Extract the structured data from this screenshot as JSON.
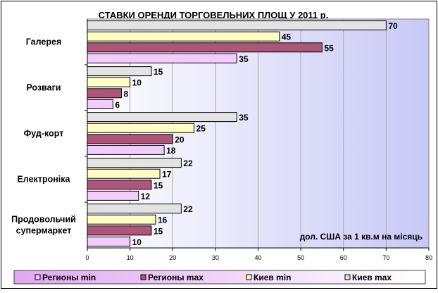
{
  "chart_data": {
    "type": "bar",
    "orientation": "horizontal",
    "title": "СТАВКИ ОРЕНДИ ТОРГОВЕЛЬНИХ ПЛОЩ У 2011 р.",
    "annotation": "дол. США за 1 кв.м на місяць",
    "categories": [
      [
        "Галерея"
      ],
      [
        "Розваги"
      ],
      [
        "Фуд-корт"
      ],
      [
        "Електроніка"
      ],
      [
        "Продовольчий",
        "супермаркет"
      ]
    ],
    "series": [
      {
        "name": "Регионы min",
        "values": [
          35,
          6,
          18,
          12,
          10
        ],
        "color": "#f2ccff"
      },
      {
        "name": "Регионы max",
        "values": [
          55,
          8,
          20,
          15,
          15
        ],
        "color": "#b0557a"
      },
      {
        "name": "Киев min",
        "values": [
          45,
          10,
          25,
          17,
          16
        ],
        "color": "#ffffc4"
      },
      {
        "name": "Киев max",
        "values": [
          70,
          15,
          35,
          22,
          22
        ],
        "color": "#e3e3e3"
      }
    ],
    "xlim": [
      0,
      80
    ],
    "xticks": [
      0,
      10,
      20,
      30,
      40,
      50,
      60,
      70,
      80
    ],
    "grid": true,
    "legend_position": "bottom",
    "plot_background": [
      "#ffffff",
      "#c8c8f6"
    ],
    "legend_background": [
      "#e0a8f0",
      "#ffffff"
    ]
  }
}
